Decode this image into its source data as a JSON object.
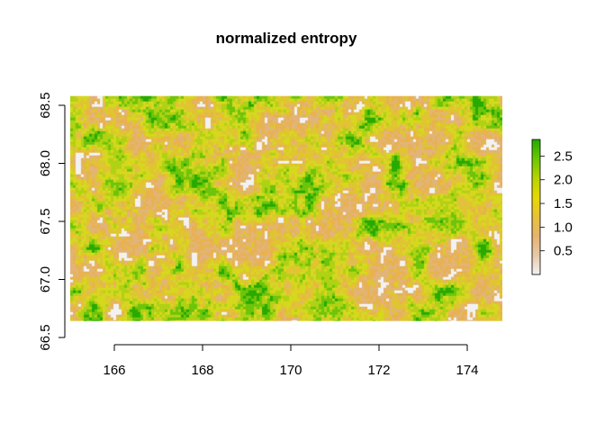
{
  "chart_data": {
    "type": "heatmap",
    "title": "normalized entropy",
    "xlabel": "",
    "ylabel": "",
    "x_range": [
      165.0,
      174.8
    ],
    "y_range": [
      66.64,
      68.58
    ],
    "xlim": [
      165.0,
      175.0
    ],
    "ylim": [
      66.5,
      68.6
    ],
    "x_ticks": [
      166,
      168,
      170,
      172,
      174
    ],
    "y_ticks": [
      66.5,
      67.0,
      67.5,
      68.0,
      68.5
    ],
    "x_tick_labels": [
      "166",
      "168",
      "170",
      "172",
      "174"
    ],
    "y_tick_labels": [
      "66.5",
      "67.0",
      "67.5",
      "68.0",
      "68.5"
    ],
    "value_range": [
      0.0,
      2.85
    ],
    "colorscale": [
      "#f2f2f2",
      "#e6c8a8",
      "#e8b26e",
      "#e8c23a",
      "#e6d800",
      "#b8d400",
      "#6ac800",
      "#22aa00"
    ],
    "grid": false,
    "legend": {
      "position": "right",
      "ticks": [
        0.5,
        1.0,
        1.5,
        2.0,
        2.5
      ],
      "tick_labels": [
        "0.5",
        "1.0",
        "1.5",
        "2.0",
        "2.5"
      ]
    },
    "value_distribution": {
      "missing_fraction": 0.12,
      "low_value_fraction": 0.42,
      "mid_value_fraction": 0.22,
      "high_value_fraction": 0.24
    }
  }
}
